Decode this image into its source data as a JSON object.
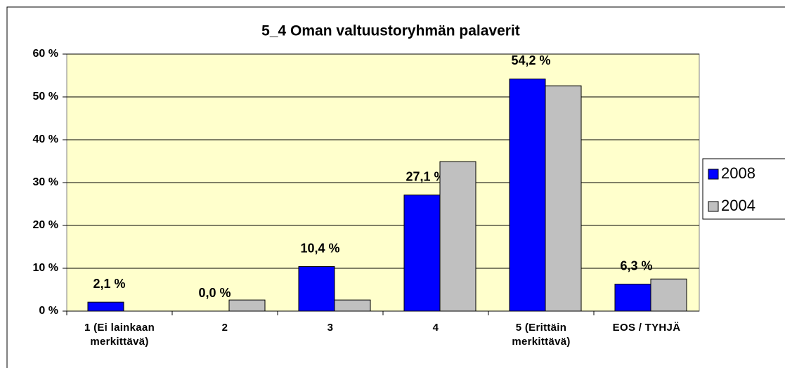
{
  "chart_data": {
    "type": "bar",
    "title": "5_4 Oman valtuustoryhmän palaverit",
    "categories": [
      "1 (Ei lainkaan merkittävä)",
      "2",
      "3",
      "4",
      "5 (Erittäin merkittävä)",
      "EOS / TYHJÄ"
    ],
    "series": [
      {
        "name": "2008",
        "color": "#0000ff",
        "values": [
          2.1,
          0.0,
          10.4,
          27.1,
          54.2,
          6.3
        ],
        "value_labels": [
          "2,1 %",
          "0,0 %",
          "10,4 %",
          "27,1 %",
          "54,2 %",
          "6,3 %"
        ]
      },
      {
        "name": "2004",
        "color": "#c0c0c0",
        "values": [
          0,
          2.6,
          2.6,
          34.9,
          52.6,
          7.5
        ]
      }
    ],
    "ylim": [
      0,
      60
    ],
    "yticks": [
      {
        "value": 0,
        "label": "0 %"
      },
      {
        "value": 10,
        "label": "10 %"
      },
      {
        "value": 20,
        "label": "20 %"
      },
      {
        "value": 30,
        "label": "30 %"
      },
      {
        "value": 40,
        "label": "40 %"
      },
      {
        "value": 50,
        "label": "50 %"
      },
      {
        "value": 60,
        "label": "60 %"
      }
    ],
    "grid": true,
    "legend": "right"
  }
}
